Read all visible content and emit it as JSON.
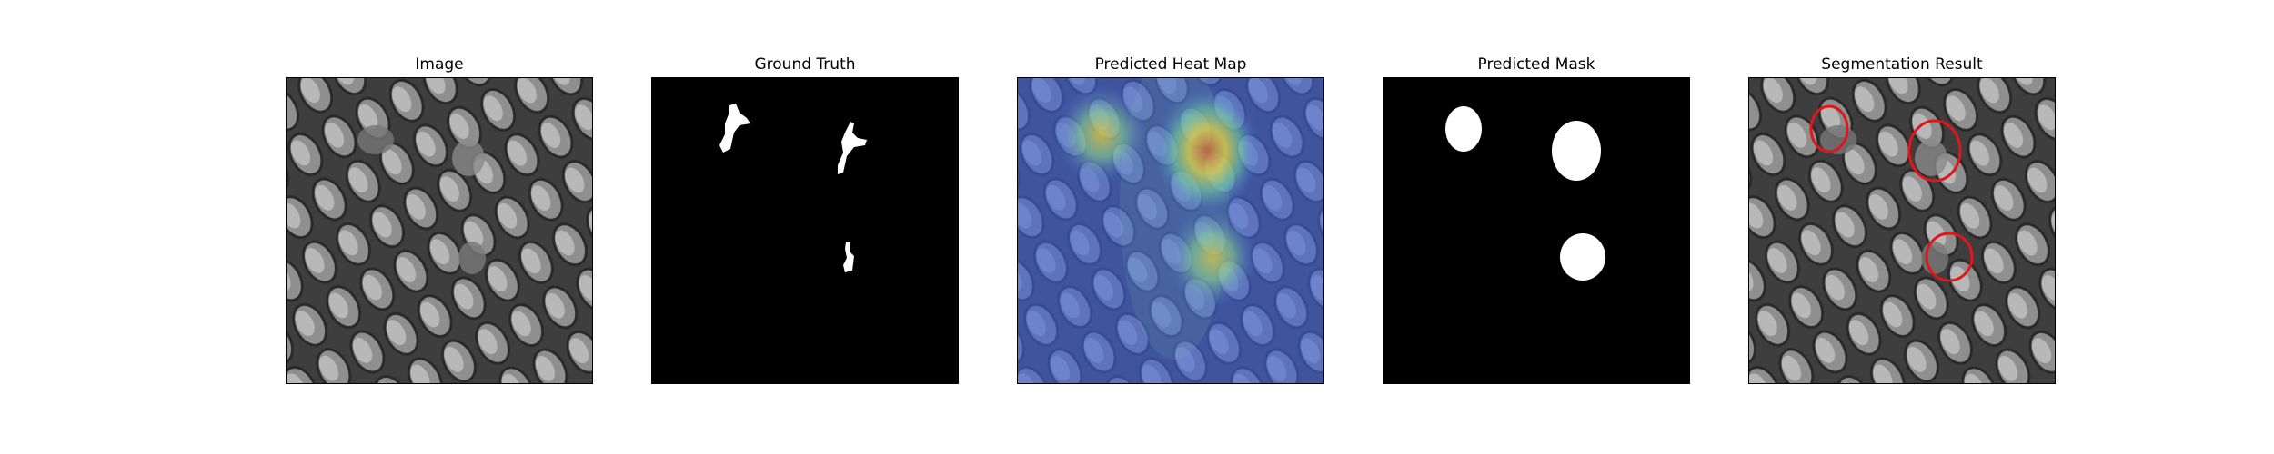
{
  "figure": {
    "panels": [
      {
        "id": "image",
        "title": "Image"
      },
      {
        "id": "ground-truth",
        "title": "Ground Truth"
      },
      {
        "id": "heatmap",
        "title": "Predicted Heat Map"
      },
      {
        "id": "mask",
        "title": "Predicted Mask"
      },
      {
        "id": "segmentation",
        "title": "Segmentation Result"
      }
    ]
  },
  "colors": {
    "background": "#ffffff",
    "mask_fg": "#ffffff",
    "mask_bg": "#000000",
    "contour": "#e0161a",
    "texture_light": "#9a9a9a",
    "texture_dark": "#3a3a3a"
  }
}
